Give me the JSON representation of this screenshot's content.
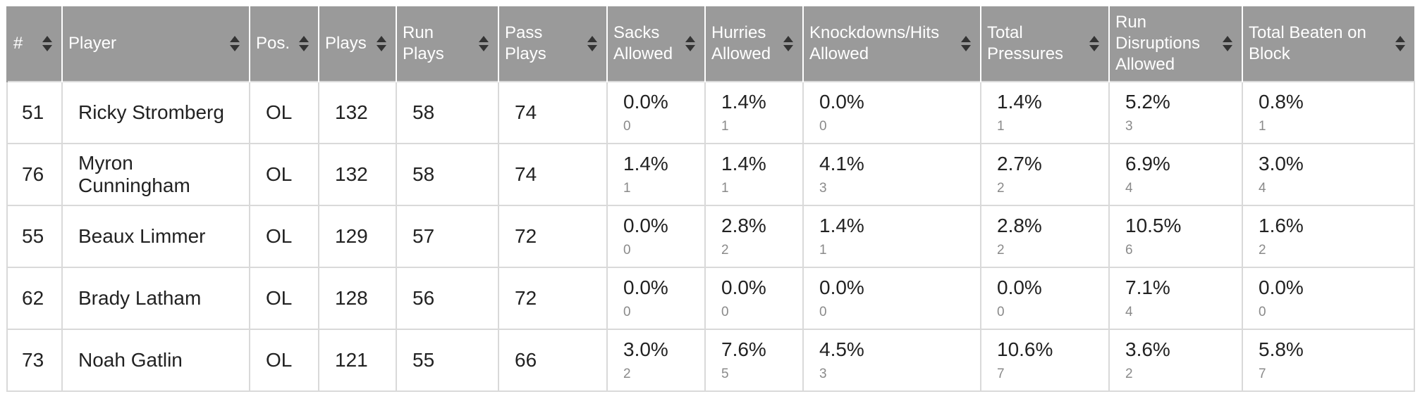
{
  "columns": [
    "#",
    "Player",
    "Pos.",
    "Plays",
    "Run Plays",
    "Pass Plays",
    "Sacks Allowed",
    "Hurries Allowed",
    "Knockdowns/Hits Allowed",
    "Total Pressures",
    "Run Disruptions Allowed",
    "Total Beaten on Block"
  ],
  "rows": [
    {
      "num": "51",
      "player": "Ricky Stromberg",
      "pos": "OL",
      "plays": "132",
      "run_plays": "58",
      "pass_plays": "74",
      "sacks": {
        "pct": "0.0%",
        "n": "0"
      },
      "hurries": {
        "pct": "1.4%",
        "n": "1"
      },
      "knockdowns": {
        "pct": "0.0%",
        "n": "0"
      },
      "pressures": {
        "pct": "1.4%",
        "n": "1"
      },
      "run_disruptions": {
        "pct": "5.2%",
        "n": "3"
      },
      "beaten": {
        "pct": "0.8%",
        "n": "1"
      }
    },
    {
      "num": "76",
      "player": "Myron Cunningham",
      "pos": "OL",
      "plays": "132",
      "run_plays": "58",
      "pass_plays": "74",
      "sacks": {
        "pct": "1.4%",
        "n": "1"
      },
      "hurries": {
        "pct": "1.4%",
        "n": "1"
      },
      "knockdowns": {
        "pct": "4.1%",
        "n": "3"
      },
      "pressures": {
        "pct": "2.7%",
        "n": "2"
      },
      "run_disruptions": {
        "pct": "6.9%",
        "n": "4"
      },
      "beaten": {
        "pct": "3.0%",
        "n": "4"
      }
    },
    {
      "num": "55",
      "player": "Beaux Limmer",
      "pos": "OL",
      "plays": "129",
      "run_plays": "57",
      "pass_plays": "72",
      "sacks": {
        "pct": "0.0%",
        "n": "0"
      },
      "hurries": {
        "pct": "2.8%",
        "n": "2"
      },
      "knockdowns": {
        "pct": "1.4%",
        "n": "1"
      },
      "pressures": {
        "pct": "2.8%",
        "n": "2"
      },
      "run_disruptions": {
        "pct": "10.5%",
        "n": "6"
      },
      "beaten": {
        "pct": "1.6%",
        "n": "2"
      }
    },
    {
      "num": "62",
      "player": "Brady Latham",
      "pos": "OL",
      "plays": "128",
      "run_plays": "56",
      "pass_plays": "72",
      "sacks": {
        "pct": "0.0%",
        "n": "0"
      },
      "hurries": {
        "pct": "0.0%",
        "n": "0"
      },
      "knockdowns": {
        "pct": "0.0%",
        "n": "0"
      },
      "pressures": {
        "pct": "0.0%",
        "n": "0"
      },
      "run_disruptions": {
        "pct": "7.1%",
        "n": "4"
      },
      "beaten": {
        "pct": "0.0%",
        "n": "0"
      }
    },
    {
      "num": "73",
      "player": "Noah Gatlin",
      "pos": "OL",
      "plays": "121",
      "run_plays": "55",
      "pass_plays": "66",
      "sacks": {
        "pct": "3.0%",
        "n": "2"
      },
      "hurries": {
        "pct": "7.6%",
        "n": "5"
      },
      "knockdowns": {
        "pct": "4.5%",
        "n": "3"
      },
      "pressures": {
        "pct": "10.6%",
        "n": "7"
      },
      "run_disruptions": {
        "pct": "3.6%",
        "n": "2"
      },
      "beaten": {
        "pct": "5.8%",
        "n": "7"
      }
    }
  ],
  "colors": {
    "header_bg": "#9a9a9a",
    "header_text": "#ffffff",
    "border": "#d9d9d9",
    "count_text": "#8a8a8a"
  },
  "icons": {
    "sort": "sort-icon"
  }
}
